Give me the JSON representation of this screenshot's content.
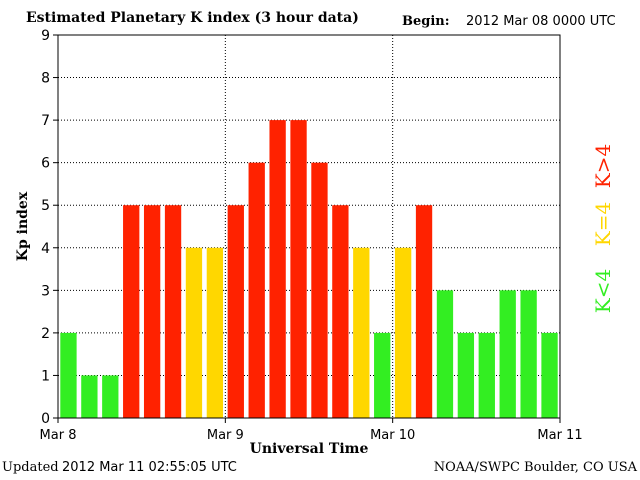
{
  "header": {
    "title": "Estimated Planetary K index (3 hour data)",
    "begin_label": "Begin:",
    "begin_value": "2012 Mar 08 0000 UTC"
  },
  "footer": {
    "updated_label": "Updated",
    "updated_value": "2012 Mar 11 02:55:05 UTC",
    "credit": "NOAA/SWPC Boulder, CO USA"
  },
  "legend": [
    {
      "label": "K>4",
      "color": "#ff2200"
    },
    {
      "label": "K=4",
      "color": "#ffd700"
    },
    {
      "label": "K<4",
      "color": "#33ee22"
    }
  ],
  "chart_data": {
    "type": "bar",
    "title": "Estimated Planetary K index (3 hour data)",
    "xlabel": "Universal Time",
    "ylabel": "Kp index",
    "ylim": [
      0,
      9
    ],
    "yticks": [
      0,
      1,
      2,
      3,
      4,
      5,
      6,
      7,
      8,
      9
    ],
    "xtick_labels": [
      "Mar 8",
      "Mar 9",
      "Mar 10",
      "Mar 11"
    ],
    "grid": true,
    "interval_hours": 3,
    "values": [
      2,
      1,
      1,
      5,
      5,
      5,
      4,
      4,
      5,
      6,
      7,
      7,
      6,
      5,
      4,
      2,
      4,
      5,
      3,
      2,
      2,
      3,
      3,
      2
    ],
    "colors": {
      "low": "#33ee22",
      "equal": "#ffd700",
      "high": "#ff2200"
    }
  }
}
